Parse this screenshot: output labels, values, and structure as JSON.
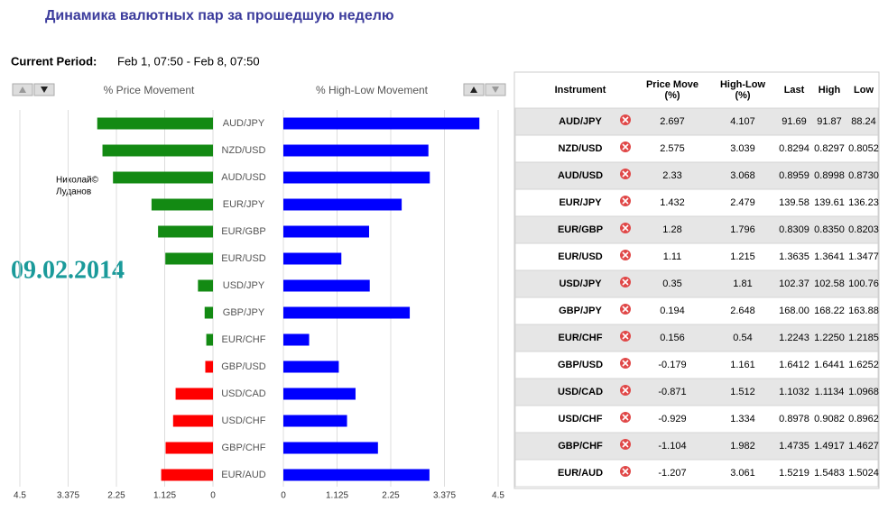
{
  "title": "Динамика валютных пар за прошедшую неделю",
  "period_label": "Current Period:",
  "period": "Feb 1, 07:50 - Feb 8, 07:50",
  "watermark": [
    "Николай©",
    "Луданов"
  ],
  "date": "09.02.2014",
  "chart_data": {
    "type": "bar",
    "categories": [
      "AUD/JPY",
      "NZD/USD",
      "AUD/USD",
      "EUR/JPY",
      "EUR/GBP",
      "EUR/USD",
      "USD/JPY",
      "GBP/JPY",
      "EUR/CHF",
      "GBP/USD",
      "USD/CAD",
      "USD/CHF",
      "GBP/CHF",
      "EUR/AUD"
    ],
    "grid": true,
    "series": [
      {
        "name": "% Price Movement",
        "positive_color": "#138a13",
        "negative_color": "#ff0000",
        "values": [
          2.697,
          2.575,
          2.33,
          1.432,
          1.28,
          1.11,
          0.35,
          0.194,
          0.156,
          -0.179,
          -0.871,
          -0.929,
          -1.104,
          -1.207
        ],
        "xlim": [
          4.5,
          0
        ],
        "xticks": [
          4.5,
          3.375,
          2.25,
          1.125,
          0
        ]
      },
      {
        "name": "% High-Low Movement",
        "color": "#0000ff",
        "values": [
          4.107,
          3.039,
          3.068,
          2.479,
          1.796,
          1.215,
          1.81,
          2.648,
          0.54,
          1.161,
          1.512,
          1.334,
          1.982,
          3.061
        ],
        "xlim": [
          0,
          4.5
        ],
        "xticks": [
          0,
          1.125,
          2.25,
          3.375,
          4.5
        ]
      }
    ]
  },
  "table": {
    "header": [
      [
        "Instrument"
      ],
      [
        "Price Move",
        "(%)"
      ],
      [
        "High-Low",
        "(%)"
      ],
      [
        "Last"
      ],
      [
        "High"
      ],
      [
        "Low"
      ]
    ],
    "rows": [
      [
        "AUD/JPY",
        "2.697",
        "4.107",
        "91.69",
        "91.87",
        "88.24"
      ],
      [
        "NZD/USD",
        "2.575",
        "3.039",
        "0.8294",
        "0.8297",
        "0.8052"
      ],
      [
        "AUD/USD",
        "2.33",
        "3.068",
        "0.8959",
        "0.8998",
        "0.8730"
      ],
      [
        "EUR/JPY",
        "1.432",
        "2.479",
        "139.58",
        "139.61",
        "136.23"
      ],
      [
        "EUR/GBP",
        "1.28",
        "1.796",
        "0.8309",
        "0.8350",
        "0.8203"
      ],
      [
        "EUR/USD",
        "1.11",
        "1.215",
        "1.3635",
        "1.3641",
        "1.3477"
      ],
      [
        "USD/JPY",
        "0.35",
        "1.81",
        "102.37",
        "102.58",
        "100.76"
      ],
      [
        "GBP/JPY",
        "0.194",
        "2.648",
        "168.00",
        "168.22",
        "163.88"
      ],
      [
        "EUR/CHF",
        "0.156",
        "0.54",
        "1.2243",
        "1.2250",
        "1.2185"
      ],
      [
        "GBP/USD",
        "-0.179",
        "1.161",
        "1.6412",
        "1.6441",
        "1.6252"
      ],
      [
        "USD/CAD",
        "-0.871",
        "1.512",
        "1.1032",
        "1.1134",
        "1.0968"
      ],
      [
        "USD/CHF",
        "-0.929",
        "1.334",
        "0.8978",
        "0.9082",
        "0.8962"
      ],
      [
        "GBP/CHF",
        "-1.104",
        "1.982",
        "1.4735",
        "1.4917",
        "1.4627"
      ],
      [
        "EUR/AUD",
        "-1.207",
        "3.061",
        "1.5219",
        "1.5483",
        "1.5024"
      ]
    ]
  }
}
